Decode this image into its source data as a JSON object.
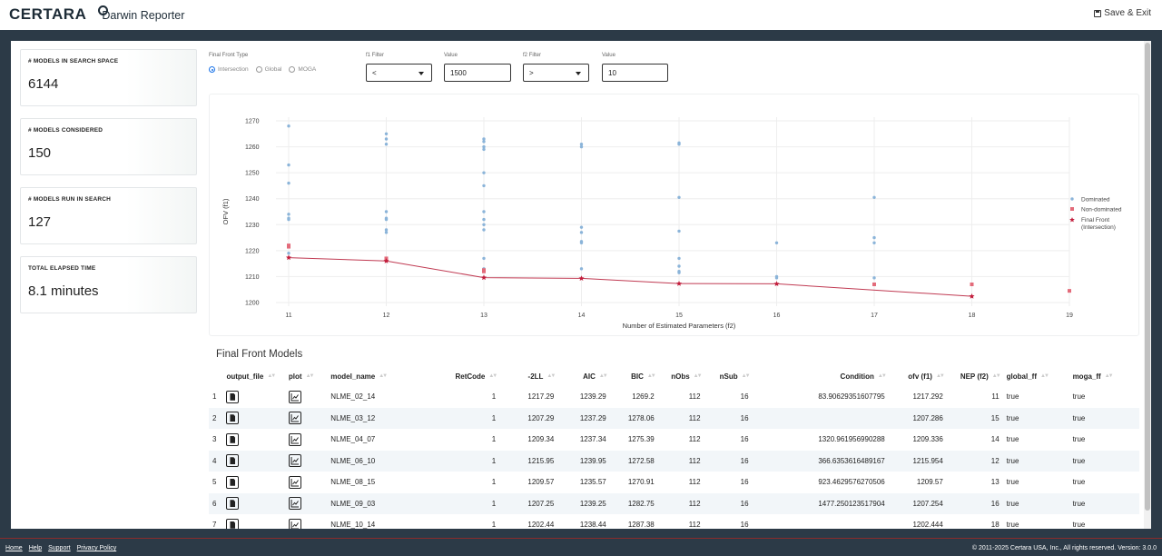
{
  "header": {
    "brand": "CERTARA",
    "app_name": "Darwin Reporter",
    "save_exit": "Save & Exit"
  },
  "stats": [
    {
      "label": "# MODELS IN SEARCH SPACE",
      "value": "6144"
    },
    {
      "label": "# MODELS CONSIDERED",
      "value": "150"
    },
    {
      "label": "# MODELS RUN IN SEARCH",
      "value": "127"
    },
    {
      "label": "TOTAL ELAPSED TIME",
      "value": "8.1 minutes"
    }
  ],
  "filters": {
    "front_type_label": "Final Front Type",
    "front_types": [
      "Intersection",
      "Global",
      "MOGA"
    ],
    "front_type_selected": "Intersection",
    "f1_label": "f1 Filter",
    "f1_op": "<",
    "f1_value_label": "Value",
    "f1_value": "1500",
    "f2_label": "f2 Filter",
    "f2_op": ">",
    "f2_value_label": "Value",
    "f2_value": "10"
  },
  "chart_data": {
    "type": "scatter",
    "xlabel": "Number of Estimated Parameters (f2)",
    "ylabel": "OFV (f1)",
    "xlim": [
      11,
      19
    ],
    "ylim": [
      1200,
      1270
    ],
    "x_ticks": [
      11,
      12,
      13,
      14,
      15,
      16,
      17,
      18,
      19
    ],
    "y_ticks": [
      1200,
      1210,
      1220,
      1230,
      1240,
      1250,
      1260,
      1270
    ],
    "legend_position": "right",
    "legend": [
      "Dominated",
      "Non-dominated",
      "Final Front\n(Intersection)"
    ],
    "colors": {
      "dominated": "#8bb4d9",
      "non_dominated": "#e36b7a",
      "front": "#c21d3c",
      "front_line": "#c03a52"
    },
    "series": [
      {
        "name": "Dominated",
        "points": [
          [
            11,
            1268
          ],
          [
            11,
            1253
          ],
          [
            11,
            1246
          ],
          [
            11,
            1234
          ],
          [
            11,
            1232.5
          ],
          [
            11,
            1232
          ],
          [
            11,
            1219
          ],
          [
            12,
            1265
          ],
          [
            12,
            1263
          ],
          [
            12,
            1261
          ],
          [
            12,
            1235
          ],
          [
            12,
            1232.5
          ],
          [
            12,
            1232
          ],
          [
            12,
            1228
          ],
          [
            12,
            1227
          ],
          [
            13,
            1263
          ],
          [
            13,
            1262
          ],
          [
            13,
            1260
          ],
          [
            13,
            1259
          ],
          [
            13,
            1250
          ],
          [
            13,
            1245
          ],
          [
            13,
            1235
          ],
          [
            13,
            1232
          ],
          [
            13,
            1230
          ],
          [
            13,
            1228
          ],
          [
            13,
            1217
          ],
          [
            13,
            1213
          ],
          [
            14,
            1261
          ],
          [
            14,
            1260
          ],
          [
            14,
            1229
          ],
          [
            14,
            1227
          ],
          [
            14,
            1223.5
          ],
          [
            14,
            1223
          ],
          [
            14,
            1213
          ],
          [
            15,
            1261.5
          ],
          [
            15,
            1261
          ],
          [
            15,
            1240.5
          ],
          [
            15,
            1227.5
          ],
          [
            15,
            1217
          ],
          [
            15,
            1214
          ],
          [
            15,
            1212
          ],
          [
            15,
            1211.5
          ],
          [
            16,
            1223
          ],
          [
            16,
            1210
          ],
          [
            16,
            1209.5
          ],
          [
            17,
            1240.5
          ],
          [
            17,
            1225
          ],
          [
            17,
            1223
          ],
          [
            17,
            1209.5
          ]
        ]
      },
      {
        "name": "Non-dominated",
        "points": [
          [
            11,
            1222
          ],
          [
            11,
            1221.5
          ],
          [
            12,
            1217
          ],
          [
            12,
            1216.5
          ],
          [
            13,
            1212.5
          ],
          [
            13,
            1212
          ],
          [
            17,
            1207
          ],
          [
            18,
            1207
          ],
          [
            19,
            1204.5
          ]
        ]
      },
      {
        "name": "Final Front\n(Intersection)",
        "points": [
          [
            11,
            1217.3
          ],
          [
            12,
            1216
          ],
          [
            13,
            1209.6
          ],
          [
            14,
            1209.3
          ],
          [
            15,
            1207.3
          ],
          [
            16,
            1207.2
          ],
          [
            18,
            1202.4
          ]
        ]
      }
    ]
  },
  "table": {
    "title": "Final Front Models",
    "columns": [
      "",
      "output_file",
      "plot",
      "model_name",
      "RetCode",
      "-2LL",
      "AIC",
      "BIC",
      "nObs",
      "nSub",
      "Condition",
      "ofv (f1)",
      "NEP (f2)",
      "global_ff",
      "moga_ff"
    ],
    "rows": [
      [
        "1",
        "",
        "",
        "NLME_02_14",
        "1",
        "1217.29",
        "1239.29",
        "1269.2",
        "112",
        "16",
        "83.90629351607795",
        "1217.292",
        "11",
        "true",
        "true"
      ],
      [
        "2",
        "",
        "",
        "NLME_03_12",
        "1",
        "1207.29",
        "1237.29",
        "1278.06",
        "112",
        "16",
        "",
        "1207.286",
        "15",
        "true",
        "true"
      ],
      [
        "3",
        "",
        "",
        "NLME_04_07",
        "1",
        "1209.34",
        "1237.34",
        "1275.39",
        "112",
        "16",
        "1320.961956990288",
        "1209.336",
        "14",
        "true",
        "true"
      ],
      [
        "4",
        "",
        "",
        "NLME_06_10",
        "1",
        "1215.95",
        "1239.95",
        "1272.58",
        "112",
        "16",
        "366.6353616489167",
        "1215.954",
        "12",
        "true",
        "true"
      ],
      [
        "5",
        "",
        "",
        "NLME_08_15",
        "1",
        "1209.57",
        "1235.57",
        "1270.91",
        "112",
        "16",
        "923.4629576270506",
        "1209.57",
        "13",
        "true",
        "true"
      ],
      [
        "6",
        "",
        "",
        "NLME_09_03",
        "1",
        "1207.25",
        "1239.25",
        "1282.75",
        "112",
        "16",
        "1477.250123517904",
        "1207.254",
        "16",
        "true",
        "true"
      ],
      [
        "7",
        "",
        "",
        "NLME_10_14",
        "1",
        "1202.44",
        "1238.44",
        "1287.38",
        "112",
        "16",
        "",
        "1202.444",
        "18",
        "true",
        "true"
      ]
    ]
  },
  "footer": {
    "links": [
      "Home",
      "Help",
      "Support",
      "Privacy Policy"
    ],
    "copyright": "© 2011-2025 Certara USA, Inc., All rights reserved. Version: 3.0.0"
  }
}
